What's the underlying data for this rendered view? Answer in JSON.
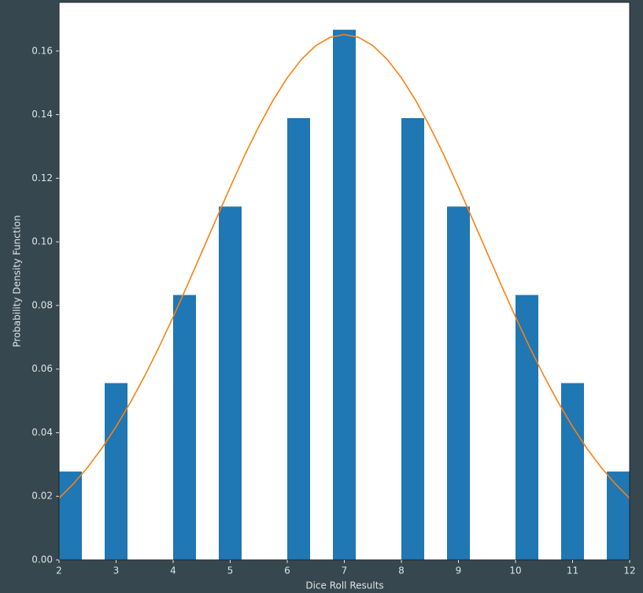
{
  "chart_data": {
    "type": "histogram",
    "xlabel": "Dice Roll Results",
    "ylabel": "Probability Density Function",
    "bins": [
      2,
      2.4,
      2.8,
      3.2,
      3.6,
      4,
      4.4,
      4.8,
      5.2,
      5.6,
      6,
      6.4,
      6.8,
      7.2,
      7.6,
      8,
      8.4,
      8.8,
      9.2,
      9.6,
      10,
      10.4,
      10.8,
      11.2,
      11.6,
      12
    ],
    "values": [
      0.0278,
      0,
      0.0556,
      0,
      0,
      0.0833,
      0,
      0.1111,
      0,
      0,
      0.1389,
      0,
      0.1667,
      0,
      0,
      0.1389,
      0,
      0.1111,
      0,
      0,
      0.0833,
      0,
      0.0556,
      0,
      0.0278
    ],
    "color": "#1f77b4",
    "line": {
      "color": "#ff7f0e",
      "x": [
        2,
        2.25,
        2.5,
        2.75,
        3,
        3.25,
        3.5,
        3.75,
        4,
        4.25,
        4.5,
        4.75,
        5,
        5.25,
        5.5,
        5.75,
        6,
        6.25,
        6.5,
        6.75,
        7,
        7.25,
        7.5,
        7.75,
        8,
        8.25,
        8.5,
        8.75,
        9,
        9.25,
        9.5,
        9.75,
        10,
        10.25,
        10.5,
        10.75,
        11,
        11.25,
        11.5,
        11.75,
        12
      ],
      "values": [
        0.0194,
        0.0239,
        0.0291,
        0.0351,
        0.0419,
        0.0495,
        0.0578,
        0.0668,
        0.0764,
        0.0864,
        0.0967,
        0.107,
        0.1172,
        0.1271,
        0.1362,
        0.1445,
        0.1516,
        0.1574,
        0.1617,
        0.1643,
        0.1652,
        0.1643,
        0.1617,
        0.1574,
        0.1516,
        0.1445,
        0.1362,
        0.1271,
        0.1172,
        0.107,
        0.0967,
        0.0864,
        0.0764,
        0.0668,
        0.0578,
        0.0495,
        0.0419,
        0.0351,
        0.0291,
        0.0239,
        0.0194
      ]
    },
    "xlim": [
      2,
      12
    ],
    "xticks": [
      2,
      3,
      4,
      5,
      6,
      7,
      8,
      9,
      10,
      11,
      12
    ],
    "ylim": [
      0,
      0.1753
    ],
    "yticks": [
      {
        "value": 0,
        "label": "0.00"
      },
      {
        "value": 0.02,
        "label": "0.02"
      },
      {
        "value": 0.04,
        "label": "0.04"
      },
      {
        "value": 0.06,
        "label": "0.06"
      },
      {
        "value": 0.08,
        "label": "0.08"
      },
      {
        "value": 0.1,
        "label": "0.10"
      },
      {
        "value": 0.12,
        "label": "0.12"
      },
      {
        "value": 0.14,
        "label": "0.14"
      },
      {
        "value": 0.16,
        "label": "0.16"
      }
    ]
  }
}
